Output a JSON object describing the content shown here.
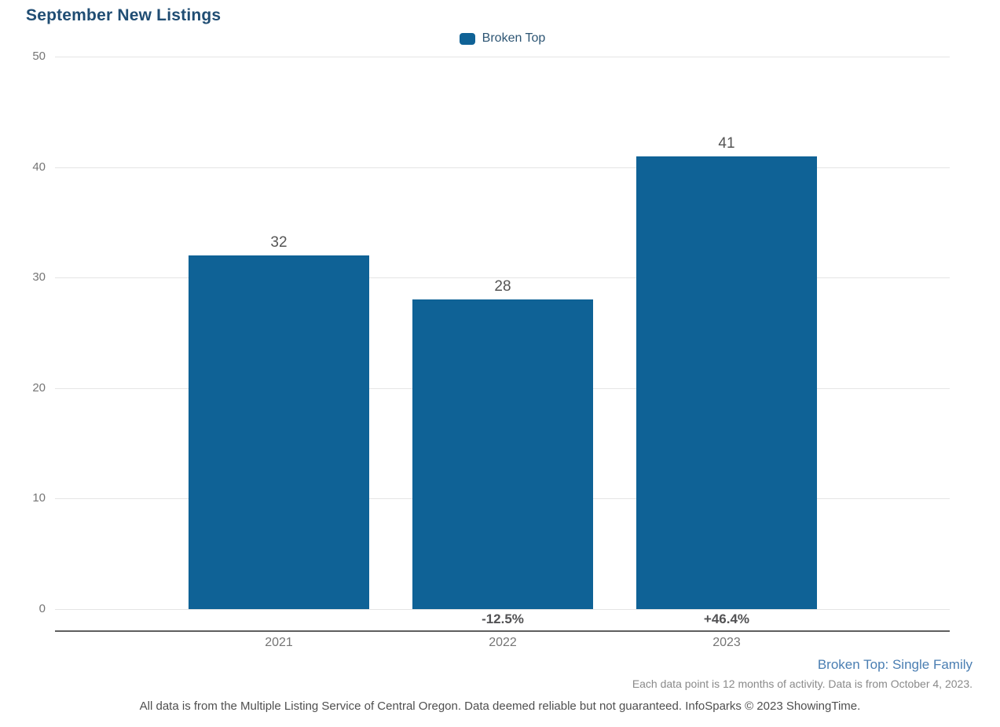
{
  "page": {
    "title": "September New Listings"
  },
  "legend": {
    "items": [
      {
        "label": "Broken Top",
        "color": "#0f6296"
      }
    ]
  },
  "chart_data": {
    "type": "bar",
    "title": "September New Listings",
    "categories": [
      "2021",
      "2022",
      "2023"
    ],
    "series": [
      {
        "name": "Broken Top",
        "values": [
          32,
          28,
          41
        ],
        "color": "#0f6296"
      }
    ],
    "data_labels": [
      "32",
      "28",
      "41"
    ],
    "change_labels": [
      "",
      "-12.5%",
      "+46.4%"
    ],
    "xlabel": "",
    "ylabel": "",
    "ylim": [
      0,
      50
    ],
    "yticks": [
      0,
      10,
      20,
      30,
      40,
      50
    ],
    "grid": true,
    "legend_position": "top-center"
  },
  "footnotes": {
    "series_description": "Broken Top: Single Family",
    "data_note": "Each data point is 12 months of activity. Data is from October 4, 2023.",
    "disclaimer": "All data is from the Multiple Listing Service of Central Oregon. Data deemed reliable but not guaranteed. InfoSparks © 2023 ShowingTime."
  },
  "colors": {
    "bar": "#0f6296",
    "title_text": "#204d73",
    "legend_text": "#2d5573",
    "data_label": "#555555",
    "change_label": "#525254",
    "axis_tick_label": "#757575",
    "gridline": "#e5e5e5",
    "axis_line": "#5f5f5f",
    "series_description_text": "#4a7eb2",
    "note_text": "#8a8a8a",
    "disclaimer_text": "#4f4f4f"
  }
}
